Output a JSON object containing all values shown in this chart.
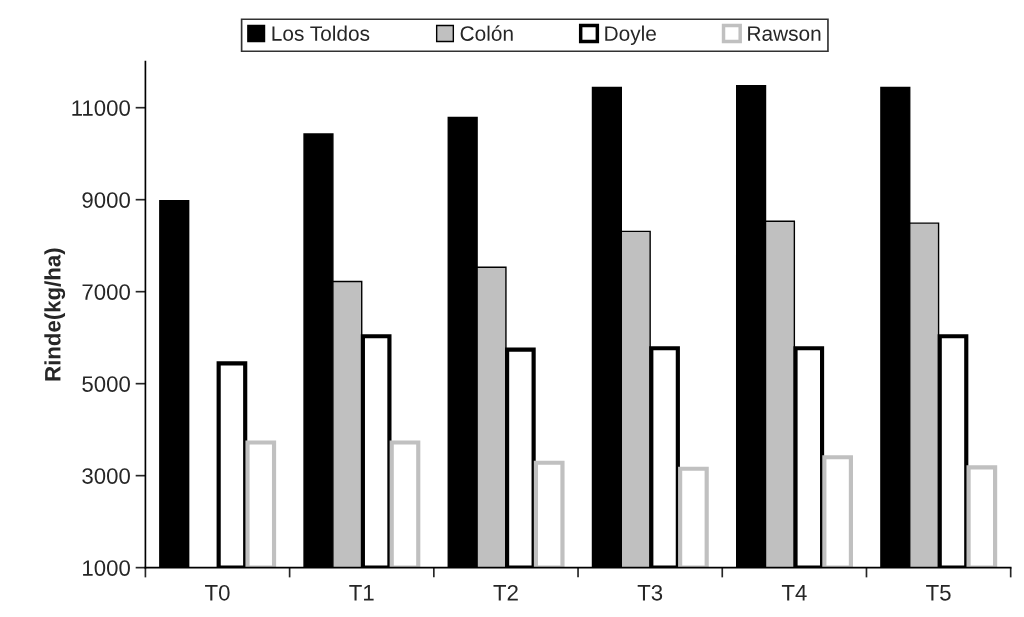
{
  "chart_data": {
    "type": "bar",
    "ylabel": "Rinde(kg/ha)",
    "categories": [
      "T0",
      "T1",
      "T2",
      "T3",
      "T4",
      "T5"
    ],
    "series": [
      {
        "name": "Los Toldos",
        "color": "#000000",
        "values": [
          8980,
          10430,
          10790,
          11440,
          11480,
          11440
        ]
      },
      {
        "name": "Colón",
        "color": "#c0c0c0",
        "values": [
          null,
          7220,
          7530,
          8310,
          8530,
          8490
        ]
      },
      {
        "name": "Doyle",
        "color": "#000000",
        "values": [
          5440,
          6030,
          5740,
          5770,
          5770,
          6030
        ]
      },
      {
        "name": "Rawson",
        "color": "#c0c0c0",
        "values": [
          3720,
          3720,
          3280,
          3150,
          3400,
          3180
        ]
      }
    ],
    "ylim": [
      1000,
      12000
    ],
    "yticks": [
      1000,
      3000,
      5000,
      7000,
      9000,
      11000
    ],
    "grid": false,
    "legend": "top"
  }
}
